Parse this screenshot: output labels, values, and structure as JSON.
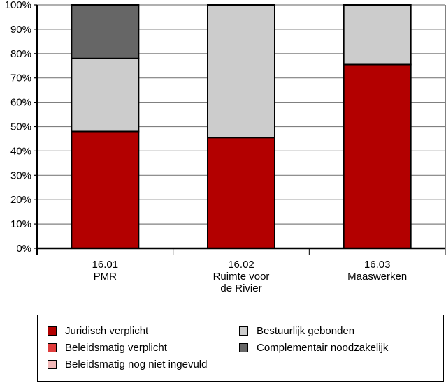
{
  "chart_data": {
    "type": "bar",
    "stacked": true,
    "title": "",
    "xlabel": "",
    "ylabel": "",
    "ylim": [
      0,
      100
    ],
    "yticks": [
      "0%",
      "10%",
      "20%",
      "30%",
      "40%",
      "50%",
      "60%",
      "70%",
      "80%",
      "90%",
      "100%"
    ],
    "grid": true,
    "categories": [
      [
        "16.01",
        "PMR"
      ],
      [
        "16.02",
        "Ruimte voor",
        "de Rivier"
      ],
      [
        "16.03",
        "Maaswerken"
      ]
    ],
    "series": [
      {
        "name": "Juridisch verplicht",
        "color": "#b30000",
        "values": [
          48,
          45.5,
          75.5
        ]
      },
      {
        "name": "Beleidsmatig verplicht",
        "color": "#e03c3c",
        "values": [
          0,
          0,
          0
        ]
      },
      {
        "name": "Beleidsmatig nog niet ingevuld",
        "color": "#f2b8b8",
        "values": [
          0,
          0,
          0
        ]
      },
      {
        "name": "Bestuurlijk gebonden",
        "color": "#cccccc",
        "values": [
          30,
          54.5,
          24.5
        ]
      },
      {
        "name": "Complementair noodzakelijk",
        "color": "#666666",
        "values": [
          22,
          0,
          0
        ]
      }
    ],
    "legend_position": "bottom"
  }
}
